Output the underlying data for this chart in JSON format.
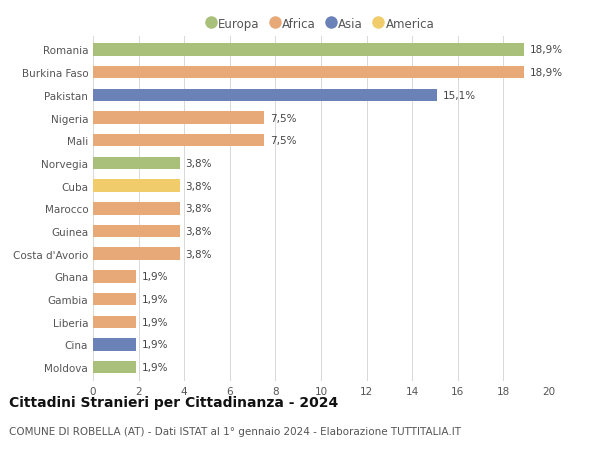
{
  "countries": [
    "Romania",
    "Burkina Faso",
    "Pakistan",
    "Nigeria",
    "Mali",
    "Norvegia",
    "Cuba",
    "Marocco",
    "Guinea",
    "Costa d'Avorio",
    "Ghana",
    "Gambia",
    "Liberia",
    "Cina",
    "Moldova"
  ],
  "values": [
    18.9,
    18.9,
    15.1,
    7.5,
    7.5,
    3.8,
    3.8,
    3.8,
    3.8,
    3.8,
    1.9,
    1.9,
    1.9,
    1.9,
    1.9
  ],
  "labels": [
    "18,9%",
    "18,9%",
    "15,1%",
    "7,5%",
    "7,5%",
    "3,8%",
    "3,8%",
    "3,8%",
    "3,8%",
    "3,8%",
    "1,9%",
    "1,9%",
    "1,9%",
    "1,9%",
    "1,9%"
  ],
  "continents": [
    "Europa",
    "Africa",
    "Asia",
    "Africa",
    "Africa",
    "Europa",
    "America",
    "Africa",
    "Africa",
    "Africa",
    "Africa",
    "Africa",
    "Africa",
    "Asia",
    "Europa"
  ],
  "continent_colors": {
    "Europa": "#a8c07a",
    "Africa": "#e8a978",
    "Asia": "#6b82b8",
    "America": "#f0cc6a"
  },
  "legend_order": [
    "Europa",
    "Africa",
    "Asia",
    "America"
  ],
  "title": "Cittadini Stranieri per Cittadinanza - 2024",
  "subtitle": "COMUNE DI ROBELLA (AT) - Dati ISTAT al 1° gennaio 2024 - Elaborazione TUTTITALIA.IT",
  "xlim": [
    0,
    20
  ],
  "xticks": [
    0,
    2,
    4,
    6,
    8,
    10,
    12,
    14,
    16,
    18,
    20
  ],
  "background_color": "#ffffff",
  "grid_color": "#d8d8d8",
  "bar_height": 0.55,
  "title_fontsize": 10,
  "subtitle_fontsize": 7.5,
  "label_fontsize": 7.5,
  "tick_fontsize": 7.5,
  "legend_fontsize": 8.5
}
